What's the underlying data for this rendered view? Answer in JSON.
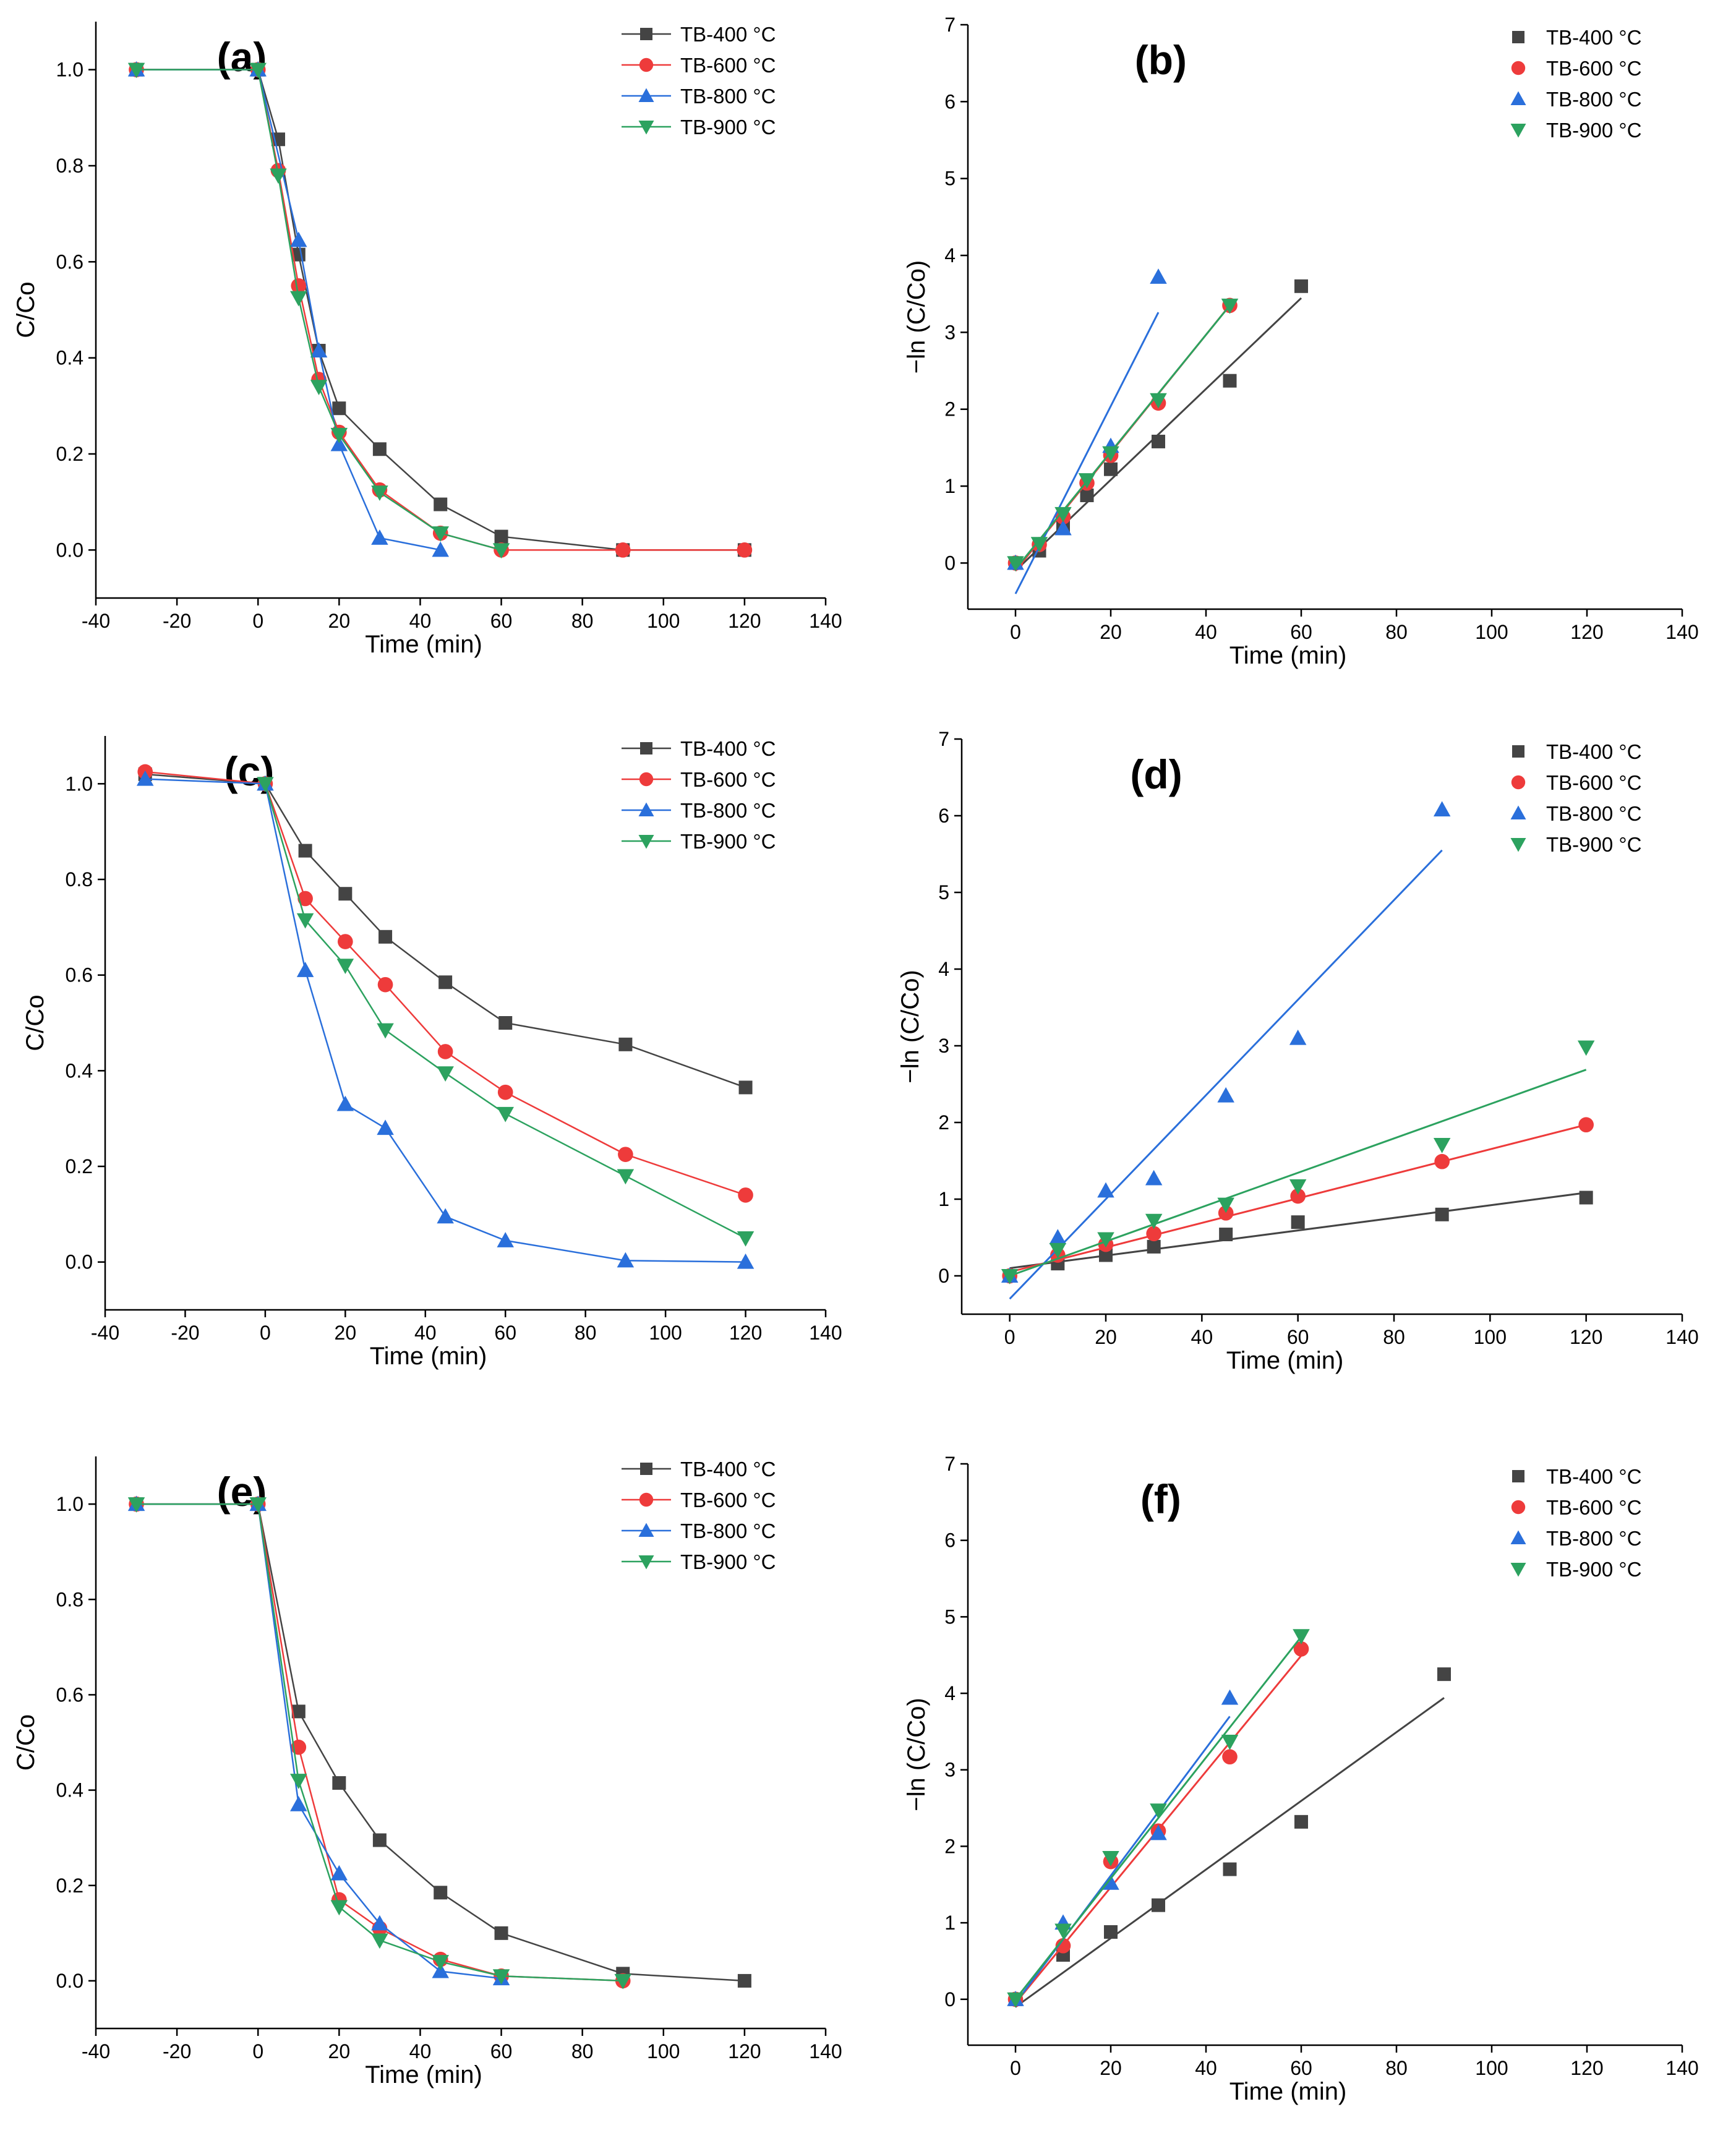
{
  "colors": {
    "TB-400 °C": "#444444",
    "TB-600 °C": "#ee3b3b",
    "TB-800 °C": "#2a6fdb",
    "TB-900 °C": "#2ca25f"
  },
  "markers": {
    "TB-400 °C": "square",
    "TB-600 °C": "circle",
    "TB-800 °C": "triangle-up",
    "TB-900 °C": "triangle-down"
  },
  "chart_data": [
    {
      "type": "line",
      "title": "(a)",
      "xlabel": "Time (min)",
      "ylabel": "C/Co",
      "xlim": [
        -40,
        140
      ],
      "ylim": [
        -0.1,
        1.1
      ],
      "xticks": [
        -40,
        -20,
        0,
        20,
        40,
        60,
        80,
        100,
        120,
        140
      ],
      "yticks": [
        0.0,
        0.2,
        0.4,
        0.6,
        0.8,
        1.0
      ],
      "xtick_labels": [
        "-40",
        "-20",
        "0",
        "20",
        "40",
        "60",
        "80",
        "100",
        "120",
        "140"
      ],
      "ytick_labels": [
        "0.0",
        "0.2",
        "0.4",
        "0.6",
        "0.8",
        "1.0"
      ],
      "legend": "top-right",
      "series": [
        {
          "name": "TB-400 °C",
          "x": [
            -30,
            0,
            5,
            10,
            15,
            20,
            30,
            45,
            60,
            90,
            120
          ],
          "y": [
            1.0,
            1.0,
            0.855,
            0.615,
            0.415,
            0.295,
            0.21,
            0.095,
            0.028,
            0.0,
            0.0
          ]
        },
        {
          "name": "TB-600 °C",
          "x": [
            -30,
            0,
            5,
            10,
            15,
            20,
            30,
            45,
            60,
            90,
            120
          ],
          "y": [
            1.0,
            1.0,
            0.79,
            0.55,
            0.355,
            0.245,
            0.125,
            0.035,
            0.0,
            0.0,
            0.0
          ]
        },
        {
          "name": "TB-800 °C",
          "x": [
            -30,
            0,
            10,
            15,
            20,
            30,
            45
          ],
          "y": [
            1.0,
            1.0,
            0.645,
            0.415,
            0.22,
            0.025,
            0.0
          ]
        },
        {
          "name": "TB-900 °C",
          "x": [
            -30,
            0,
            5,
            10,
            15,
            20,
            30,
            45,
            60
          ],
          "y": [
            1.0,
            1.0,
            0.78,
            0.525,
            0.34,
            0.24,
            0.12,
            0.035,
            0.0
          ]
        }
      ]
    },
    {
      "type": "scatter",
      "title": "(b)",
      "xlabel": "Time (min)",
      "ylabel": "−ln (C/Co)",
      "xlim": [
        -10,
        140
      ],
      "ylim": [
        -0.6,
        7
      ],
      "xticks": [
        0,
        20,
        40,
        60,
        80,
        100,
        120,
        140
      ],
      "yticks": [
        0,
        1,
        2,
        3,
        4,
        5,
        6,
        7
      ],
      "xtick_labels": [
        "0",
        "20",
        "40",
        "60",
        "80",
        "100",
        "120",
        "140"
      ],
      "ytick_labels": [
        "0",
        "1",
        "2",
        "3",
        "4",
        "5",
        "6",
        "7"
      ],
      "legend": "top-right",
      "series": [
        {
          "name": "TB-400 °C",
          "x": [
            0,
            5,
            10,
            15,
            20,
            30,
            45,
            60
          ],
          "y": [
            0,
            0.16,
            0.49,
            0.88,
            1.22,
            1.58,
            2.37,
            3.6
          ],
          "fit": [
            -0.1,
            0.0591
          ]
        },
        {
          "name": "TB-600 °C",
          "x": [
            0,
            5,
            10,
            15,
            20,
            30,
            45
          ],
          "y": [
            0,
            0.24,
            0.6,
            1.04,
            1.4,
            2.08,
            3.35
          ],
          "fit": [
            -0.1,
            0.0767
          ]
        },
        {
          "name": "TB-800 °C",
          "x": [
            0,
            10,
            20,
            30
          ],
          "y": [
            0,
            0.45,
            1.52,
            3.72
          ],
          "fit": [
            -0.4,
            0.122
          ]
        },
        {
          "name": "TB-900 °C",
          "x": [
            0,
            5,
            10,
            15,
            20,
            30,
            45
          ],
          "y": [
            0,
            0.25,
            0.64,
            1.08,
            1.43,
            2.12,
            3.35
          ],
          "fit": [
            -0.08,
            0.0762
          ]
        }
      ]
    },
    {
      "type": "line",
      "title": "(c)",
      "xlabel": "Time (min)",
      "ylabel": "C/Co",
      "xlim": [
        -40,
        140
      ],
      "ylim": [
        -0.1,
        1.1
      ],
      "xticks": [
        -40,
        -20,
        0,
        20,
        40,
        60,
        80,
        100,
        120,
        140
      ],
      "yticks": [
        0.0,
        0.2,
        0.4,
        0.6,
        0.8,
        1.0
      ],
      "xtick_labels": [
        "-40",
        "-20",
        "0",
        "20",
        "40",
        "60",
        "80",
        "100",
        "120",
        "140"
      ],
      "ytick_labels": [
        "0.0",
        "0.2",
        "0.4",
        "0.6",
        "0.8",
        "1.0"
      ],
      "legend": "top-right",
      "series": [
        {
          "name": "TB-400 °C",
          "x": [
            -30,
            0,
            10,
            20,
            30,
            45,
            60,
            90,
            120
          ],
          "y": [
            1.02,
            1.0,
            0.86,
            0.77,
            0.68,
            0.585,
            0.5,
            0.455,
            0.365
          ]
        },
        {
          "name": "TB-600 °C",
          "x": [
            -30,
            0,
            10,
            20,
            30,
            45,
            60,
            90,
            120
          ],
          "y": [
            1.025,
            1.0,
            0.76,
            0.67,
            0.58,
            0.44,
            0.355,
            0.225,
            0.14
          ]
        },
        {
          "name": "TB-800 °C",
          "x": [
            -30,
            0,
            10,
            20,
            30,
            45,
            60,
            90,
            120
          ],
          "y": [
            1.01,
            1.0,
            0.61,
            0.33,
            0.28,
            0.095,
            0.045,
            0.003,
            0.0
          ]
        },
        {
          "name": "TB-900 °C",
          "x": [
            0,
            10,
            20,
            30,
            45,
            60,
            90,
            120
          ],
          "y": [
            1.0,
            0.715,
            0.62,
            0.485,
            0.395,
            0.31,
            0.18,
            0.05
          ]
        }
      ]
    },
    {
      "type": "scatter",
      "title": "(d)",
      "xlabel": "Time (min)",
      "ylabel": "−ln (C/Co)",
      "xlim": [
        -10,
        140
      ],
      "ylim": [
        -0.5,
        7
      ],
      "xticks": [
        0,
        20,
        40,
        60,
        80,
        100,
        120,
        140
      ],
      "yticks": [
        0,
        1,
        2,
        3,
        4,
        5,
        6,
        7
      ],
      "xtick_labels": [
        "0",
        "20",
        "40",
        "60",
        "80",
        "100",
        "120",
        "140"
      ],
      "ytick_labels": [
        "0",
        "1",
        "2",
        "3",
        "4",
        "5",
        "6",
        "7"
      ],
      "legend": "top-right",
      "series": [
        {
          "name": "TB-400 °C",
          "x": [
            0,
            10,
            20,
            30,
            45,
            60,
            90,
            120
          ],
          "y": [
            0,
            0.16,
            0.27,
            0.38,
            0.54,
            0.7,
            0.8,
            1.02
          ],
          "fit": [
            0.1,
            0.0082
          ]
        },
        {
          "name": "TB-600 °C",
          "x": [
            0,
            10,
            20,
            30,
            45,
            60,
            90,
            120
          ],
          "y": [
            0,
            0.27,
            0.41,
            0.55,
            0.82,
            1.04,
            1.49,
            1.97
          ],
          "fit": [
            0.05,
            0.016
          ]
        },
        {
          "name": "TB-800 °C",
          "x": [
            0,
            10,
            20,
            30,
            45,
            60,
            90
          ],
          "y": [
            0,
            0.5,
            1.11,
            1.27,
            2.35,
            3.1,
            6.08
          ],
          "fit": [
            -0.3,
            0.065
          ]
        },
        {
          "name": "TB-900 °C",
          "x": [
            0,
            10,
            20,
            30,
            45,
            60,
            90,
            120
          ],
          "y": [
            0,
            0.34,
            0.48,
            0.72,
            0.93,
            1.17,
            1.71,
            2.98
          ],
          "fit": [
            0.0,
            0.0224
          ]
        }
      ]
    },
    {
      "type": "line",
      "title": "(e)",
      "xlabel": "Time (min)",
      "ylabel": "C/Co",
      "xlim": [
        -40,
        140
      ],
      "ylim": [
        -0.1,
        1.1
      ],
      "xticks": [
        -40,
        -20,
        0,
        20,
        40,
        60,
        80,
        100,
        120,
        140
      ],
      "yticks": [
        0.0,
        0.2,
        0.4,
        0.6,
        0.8,
        1.0
      ],
      "xtick_labels": [
        "-40",
        "-20",
        "0",
        "20",
        "40",
        "60",
        "80",
        "100",
        "120",
        "140"
      ],
      "ytick_labels": [
        "0.0",
        "0.2",
        "0.4",
        "0.6",
        "0.8",
        "1.0"
      ],
      "legend": "top-right",
      "series": [
        {
          "name": "TB-400 °C",
          "x": [
            -30,
            0,
            10,
            20,
            30,
            45,
            60,
            90,
            120
          ],
          "y": [
            1.0,
            1.0,
            0.565,
            0.415,
            0.295,
            0.185,
            0.1,
            0.015,
            0.0
          ]
        },
        {
          "name": "TB-600 °C",
          "x": [
            -30,
            0,
            10,
            20,
            30,
            45,
            60,
            90
          ],
          "y": [
            1.0,
            1.0,
            0.49,
            0.17,
            0.11,
            0.045,
            0.01,
            0.0
          ]
        },
        {
          "name": "TB-800 °C",
          "x": [
            -30,
            0,
            10,
            20,
            30,
            45,
            60
          ],
          "y": [
            1.0,
            1.0,
            0.37,
            0.225,
            0.12,
            0.02,
            0.005
          ]
        },
        {
          "name": "TB-900 °C",
          "x": [
            -30,
            0,
            10,
            20,
            30,
            45,
            60,
            90
          ],
          "y": [
            1.0,
            1.0,
            0.42,
            0.155,
            0.085,
            0.04,
            0.01,
            0.0
          ]
        }
      ]
    },
    {
      "type": "scatter",
      "title": "(f)",
      "xlabel": "Time (min)",
      "ylabel": "−ln (C/Co)",
      "xlim": [
        -10,
        140
      ],
      "ylim": [
        -0.6,
        7
      ],
      "xticks": [
        0,
        20,
        40,
        60,
        80,
        100,
        120,
        140
      ],
      "yticks": [
        0,
        1,
        2,
        3,
        4,
        5,
        6,
        7
      ],
      "xtick_labels": [
        "0",
        "20",
        "40",
        "60",
        "80",
        "100",
        "120",
        "140"
      ],
      "ytick_labels": [
        "0",
        "1",
        "2",
        "3",
        "4",
        "5",
        "6",
        "7"
      ],
      "legend": "top-right",
      "series": [
        {
          "name": "TB-400 °C",
          "x": [
            0,
            10,
            20,
            30,
            45,
            60,
            90
          ],
          "y": [
            0,
            0.58,
            0.88,
            1.23,
            1.7,
            2.32,
            4.25
          ],
          "fit": [
            -0.1,
            0.0449
          ]
        },
        {
          "name": "TB-600 °C",
          "x": [
            0,
            10,
            20,
            30,
            45,
            60
          ],
          "y": [
            0,
            0.7,
            1.8,
            2.2,
            3.17,
            4.58
          ],
          "fit": [
            -0.05,
            0.0757
          ]
        },
        {
          "name": "TB-800 °C",
          "x": [
            0,
            10,
            20,
            30,
            45
          ],
          "y": [
            0,
            1.0,
            1.52,
            2.17,
            3.94
          ],
          "fit": [
            -0.05,
            0.0833
          ]
        },
        {
          "name": "TB-900 °C",
          "x": [
            0,
            10,
            20,
            30,
            45,
            60
          ],
          "y": [
            0,
            0.9,
            1.85,
            2.47,
            3.37,
            4.75
          ],
          "fit": [
            0.0,
            0.079
          ]
        }
      ]
    }
  ]
}
